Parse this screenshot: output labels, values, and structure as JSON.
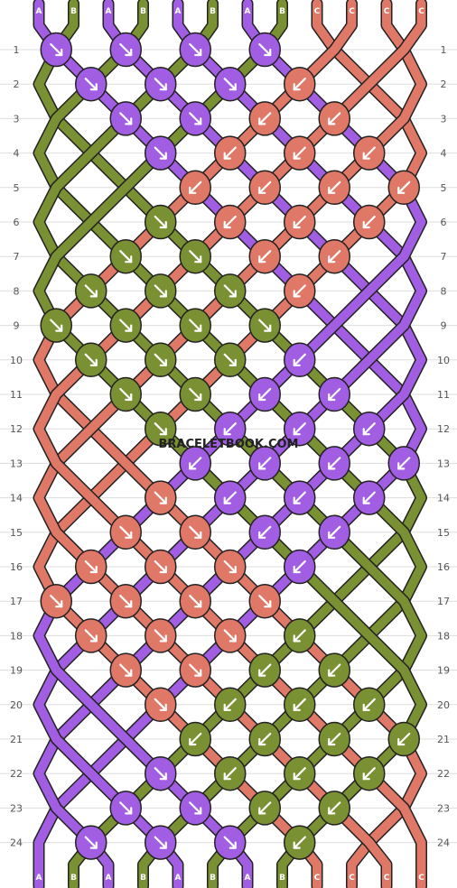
{
  "website": "BRACELETBOOK.COM",
  "colors": {
    "A": "#a25ee2",
    "B": "#799033",
    "C": "#e07868"
  },
  "top_strands": [
    "A",
    "B",
    "A",
    "B",
    "A",
    "B",
    "A",
    "B",
    "C",
    "C",
    "C",
    "C"
  ],
  "bottom_strands": [
    "A",
    "B",
    "A",
    "B",
    "A",
    "B",
    "A",
    "B",
    "C",
    "C",
    "C",
    "C"
  ],
  "row_labels": [
    "1",
    "2",
    "3",
    "4",
    "5",
    "6",
    "7",
    "8",
    "9",
    "10",
    "11",
    "12",
    "13",
    "14",
    "15",
    "16",
    "17",
    "18",
    "19",
    "20",
    "21",
    "22",
    "23",
    "24"
  ],
  "knots": [
    {
      "row": 1,
      "col": 1,
      "color": "A",
      "dir": "se"
    },
    {
      "row": 1,
      "col": 3,
      "color": "A",
      "dir": "se"
    },
    {
      "row": 1,
      "col": 5,
      "color": "A",
      "dir": "se"
    },
    {
      "row": 1,
      "col": 7,
      "color": "A",
      "dir": "se"
    },
    {
      "row": 2,
      "col": 2,
      "color": "A",
      "dir": "se"
    },
    {
      "row": 2,
      "col": 4,
      "color": "A",
      "dir": "se"
    },
    {
      "row": 2,
      "col": 6,
      "color": "A",
      "dir": "se"
    },
    {
      "row": 2,
      "col": 8,
      "color": "C",
      "dir": "sw"
    },
    {
      "row": 3,
      "col": 3,
      "color": "A",
      "dir": "se"
    },
    {
      "row": 3,
      "col": 5,
      "color": "A",
      "dir": "se"
    },
    {
      "row": 3,
      "col": 7,
      "color": "C",
      "dir": "sw"
    },
    {
      "row": 3,
      "col": 9,
      "color": "C",
      "dir": "sw"
    },
    {
      "row": 4,
      "col": 4,
      "color": "A",
      "dir": "se"
    },
    {
      "row": 4,
      "col": 6,
      "color": "C",
      "dir": "sw"
    },
    {
      "row": 4,
      "col": 8,
      "color": "C",
      "dir": "sw"
    },
    {
      "row": 4,
      "col": 10,
      "color": "C",
      "dir": "sw"
    },
    {
      "row": 5,
      "col": 5,
      "color": "C",
      "dir": "sw"
    },
    {
      "row": 5,
      "col": 7,
      "color": "C",
      "dir": "sw"
    },
    {
      "row": 5,
      "col": 9,
      "color": "C",
      "dir": "sw"
    },
    {
      "row": 5,
      "col": 11,
      "color": "C",
      "dir": "sw"
    },
    {
      "row": 6,
      "col": 4,
      "color": "B",
      "dir": "se"
    },
    {
      "row": 6,
      "col": 6,
      "color": "C",
      "dir": "sw"
    },
    {
      "row": 6,
      "col": 8,
      "color": "C",
      "dir": "sw"
    },
    {
      "row": 6,
      "col": 10,
      "color": "C",
      "dir": "sw"
    },
    {
      "row": 7,
      "col": 3,
      "color": "B",
      "dir": "se"
    },
    {
      "row": 7,
      "col": 5,
      "color": "B",
      "dir": "se"
    },
    {
      "row": 7,
      "col": 7,
      "color": "C",
      "dir": "sw"
    },
    {
      "row": 7,
      "col": 9,
      "color": "C",
      "dir": "sw"
    },
    {
      "row": 8,
      "col": 2,
      "color": "B",
      "dir": "se"
    },
    {
      "row": 8,
      "col": 4,
      "color": "B",
      "dir": "se"
    },
    {
      "row": 8,
      "col": 6,
      "color": "B",
      "dir": "se"
    },
    {
      "row": 8,
      "col": 8,
      "color": "C",
      "dir": "sw"
    },
    {
      "row": 9,
      "col": 1,
      "color": "B",
      "dir": "se"
    },
    {
      "row": 9,
      "col": 3,
      "color": "B",
      "dir": "se"
    },
    {
      "row": 9,
      "col": 5,
      "color": "B",
      "dir": "se"
    },
    {
      "row": 9,
      "col": 7,
      "color": "B",
      "dir": "se"
    },
    {
      "row": 10,
      "col": 2,
      "color": "B",
      "dir": "se"
    },
    {
      "row": 10,
      "col": 4,
      "color": "B",
      "dir": "se"
    },
    {
      "row": 10,
      "col": 6,
      "color": "B",
      "dir": "se"
    },
    {
      "row": 10,
      "col": 8,
      "color": "A",
      "dir": "sw"
    },
    {
      "row": 11,
      "col": 3,
      "color": "B",
      "dir": "se"
    },
    {
      "row": 11,
      "col": 5,
      "color": "B",
      "dir": "se"
    },
    {
      "row": 11,
      "col": 7,
      "color": "A",
      "dir": "sw"
    },
    {
      "row": 11,
      "col": 9,
      "color": "A",
      "dir": "sw"
    },
    {
      "row": 12,
      "col": 4,
      "color": "B",
      "dir": "se"
    },
    {
      "row": 12,
      "col": 6,
      "color": "A",
      "dir": "sw"
    },
    {
      "row": 12,
      "col": 8,
      "color": "A",
      "dir": "sw"
    },
    {
      "row": 12,
      "col": 10,
      "color": "A",
      "dir": "sw"
    },
    {
      "row": 13,
      "col": 5,
      "color": "A",
      "dir": "sw"
    },
    {
      "row": 13,
      "col": 7,
      "color": "A",
      "dir": "sw"
    },
    {
      "row": 13,
      "col": 9,
      "color": "A",
      "dir": "sw"
    },
    {
      "row": 13,
      "col": 11,
      "color": "A",
      "dir": "sw"
    },
    {
      "row": 14,
      "col": 4,
      "color": "C",
      "dir": "se"
    },
    {
      "row": 14,
      "col": 6,
      "color": "A",
      "dir": "sw"
    },
    {
      "row": 14,
      "col": 8,
      "color": "A",
      "dir": "sw"
    },
    {
      "row": 14,
      "col": 10,
      "color": "A",
      "dir": "sw"
    },
    {
      "row": 15,
      "col": 3,
      "color": "C",
      "dir": "se"
    },
    {
      "row": 15,
      "col": 5,
      "color": "C",
      "dir": "se"
    },
    {
      "row": 15,
      "col": 7,
      "color": "A",
      "dir": "sw"
    },
    {
      "row": 15,
      "col": 9,
      "color": "A",
      "dir": "sw"
    },
    {
      "row": 16,
      "col": 2,
      "color": "C",
      "dir": "se"
    },
    {
      "row": 16,
      "col": 4,
      "color": "C",
      "dir": "se"
    },
    {
      "row": 16,
      "col": 6,
      "color": "C",
      "dir": "se"
    },
    {
      "row": 16,
      "col": 8,
      "color": "A",
      "dir": "sw"
    },
    {
      "row": 17,
      "col": 1,
      "color": "C",
      "dir": "se"
    },
    {
      "row": 17,
      "col": 3,
      "color": "C",
      "dir": "se"
    },
    {
      "row": 17,
      "col": 5,
      "color": "C",
      "dir": "se"
    },
    {
      "row": 17,
      "col": 7,
      "color": "C",
      "dir": "se"
    },
    {
      "row": 18,
      "col": 2,
      "color": "C",
      "dir": "se"
    },
    {
      "row": 18,
      "col": 4,
      "color": "C",
      "dir": "se"
    },
    {
      "row": 18,
      "col": 6,
      "color": "C",
      "dir": "se"
    },
    {
      "row": 18,
      "col": 8,
      "color": "B",
      "dir": "sw"
    },
    {
      "row": 19,
      "col": 3,
      "color": "C",
      "dir": "se"
    },
    {
      "row": 19,
      "col": 5,
      "color": "C",
      "dir": "se"
    },
    {
      "row": 19,
      "col": 7,
      "color": "B",
      "dir": "sw"
    },
    {
      "row": 19,
      "col": 9,
      "color": "B",
      "dir": "sw"
    },
    {
      "row": 20,
      "col": 4,
      "color": "C",
      "dir": "se"
    },
    {
      "row": 20,
      "col": 6,
      "color": "B",
      "dir": "sw"
    },
    {
      "row": 20,
      "col": 8,
      "color": "B",
      "dir": "sw"
    },
    {
      "row": 20,
      "col": 10,
      "color": "B",
      "dir": "sw"
    },
    {
      "row": 21,
      "col": 5,
      "color": "B",
      "dir": "sw"
    },
    {
      "row": 21,
      "col": 7,
      "color": "B",
      "dir": "sw"
    },
    {
      "row": 21,
      "col": 9,
      "color": "B",
      "dir": "sw"
    },
    {
      "row": 21,
      "col": 11,
      "color": "B",
      "dir": "sw"
    },
    {
      "row": 22,
      "col": 4,
      "color": "A",
      "dir": "se"
    },
    {
      "row": 22,
      "col": 6,
      "color": "B",
      "dir": "sw"
    },
    {
      "row": 22,
      "col": 8,
      "color": "B",
      "dir": "sw"
    },
    {
      "row": 22,
      "col": 10,
      "color": "B",
      "dir": "sw"
    },
    {
      "row": 23,
      "col": 3,
      "color": "A",
      "dir": "se"
    },
    {
      "row": 23,
      "col": 5,
      "color": "A",
      "dir": "se"
    },
    {
      "row": 23,
      "col": 7,
      "color": "B",
      "dir": "sw"
    },
    {
      "row": 23,
      "col": 9,
      "color": "B",
      "dir": "sw"
    },
    {
      "row": 24,
      "col": 2,
      "color": "A",
      "dir": "se"
    },
    {
      "row": 24,
      "col": 4,
      "color": "A",
      "dir": "se"
    },
    {
      "row": 24,
      "col": 6,
      "color": "A",
      "dir": "se"
    },
    {
      "row": 24,
      "col": 8,
      "color": "B",
      "dir": "sw"
    }
  ]
}
